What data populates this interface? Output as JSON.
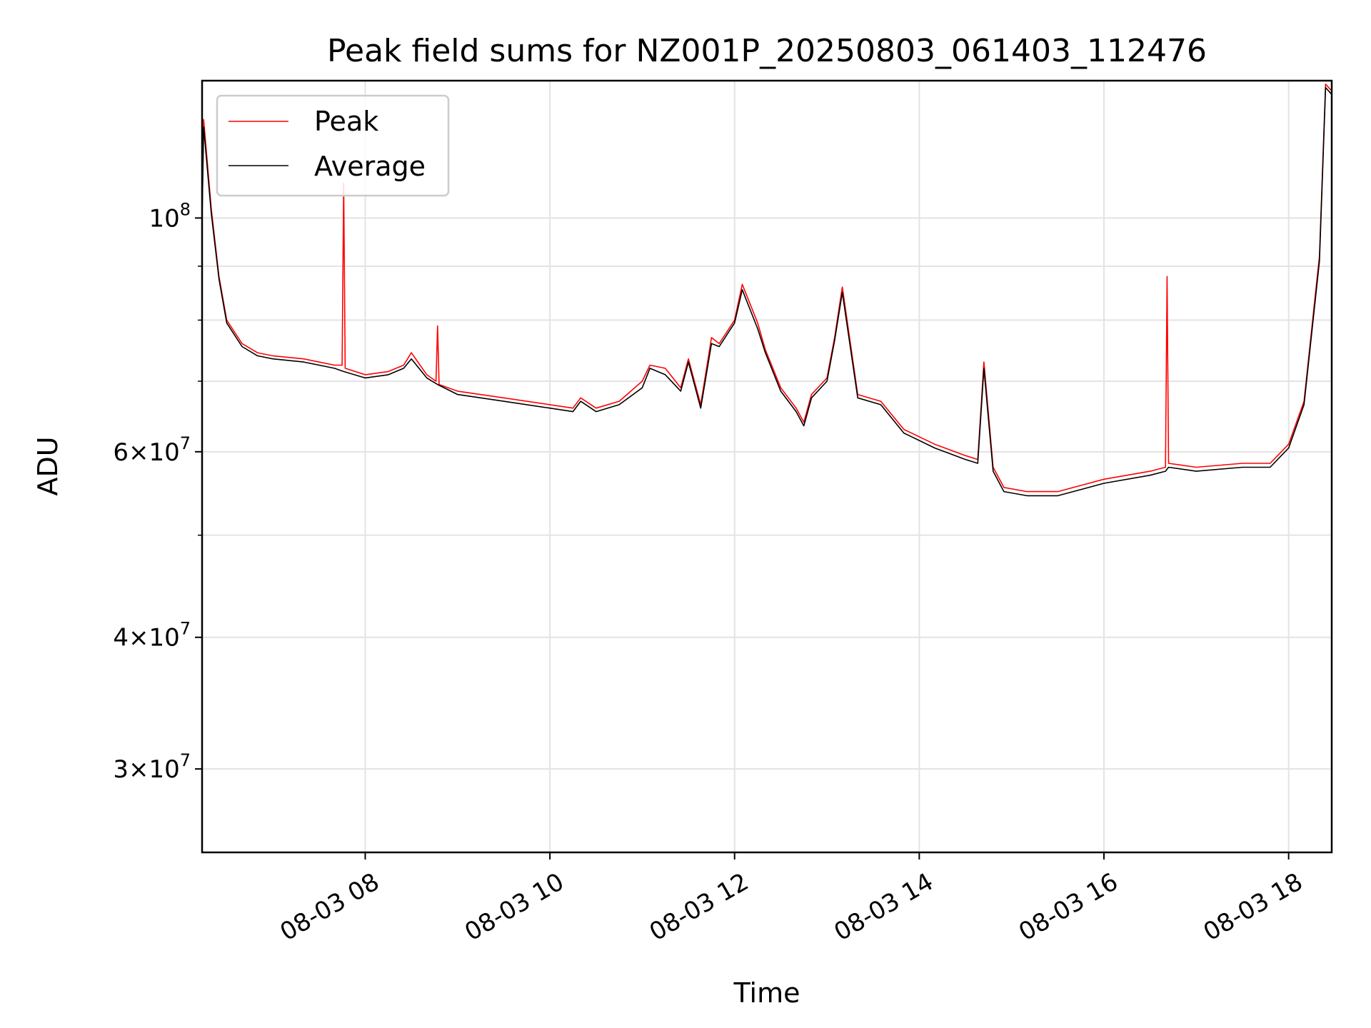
{
  "chart_data": {
    "type": "line",
    "title": "Peak field sums for NZ001P_20250803_061403_112476",
    "xlabel": "Time",
    "ylabel": "ADU",
    "y_scale": "log",
    "ylim": [
      25000000,
      135000000
    ],
    "xlim": [
      "2025-08-03 06:14",
      "2025-08-03 18:28"
    ],
    "grid": true,
    "legend_position": "upper-left",
    "x_ticks": [
      "08-03 08",
      "08-03 10",
      "08-03 12",
      "08-03 14",
      "08-03 16",
      "08-03 18"
    ],
    "x_tick_values": [
      "2025-08-03 08:00",
      "2025-08-03 10:00",
      "2025-08-03 12:00",
      "2025-08-03 14:00",
      "2025-08-03 16:00",
      "2025-08-03 18:00"
    ],
    "y_ticks": [
      {
        "value": 30000000,
        "base": "3",
        "exp": "7"
      },
      {
        "value": 40000000,
        "base": "4",
        "exp": "7"
      },
      {
        "value": 60000000,
        "base": "6",
        "exp": "7"
      },
      {
        "value": 100000000,
        "base": "",
        "exp": "8"
      }
    ],
    "series": [
      {
        "name": "Peak",
        "color": "#ff0000",
        "x": [
          "2025-08-03 06:14",
          "2025-08-03 06:15",
          "2025-08-03 06:20",
          "2025-08-03 06:25",
          "2025-08-03 06:30",
          "2025-08-03 06:40",
          "2025-08-03 06:50",
          "2025-08-03 07:00",
          "2025-08-03 07:20",
          "2025-08-03 07:40",
          "2025-08-03 07:45",
          "2025-08-03 07:46",
          "2025-08-03 07:47",
          "2025-08-03 08:00",
          "2025-08-03 08:15",
          "2025-08-03 08:25",
          "2025-08-03 08:30",
          "2025-08-03 08:40",
          "2025-08-03 08:46",
          "2025-08-03 08:47",
          "2025-08-03 08:48",
          "2025-08-03 09:00",
          "2025-08-03 09:30",
          "2025-08-03 10:00",
          "2025-08-03 10:15",
          "2025-08-03 10:20",
          "2025-08-03 10:30",
          "2025-08-03 10:45",
          "2025-08-03 11:00",
          "2025-08-03 11:05",
          "2025-08-03 11:15",
          "2025-08-03 11:25",
          "2025-08-03 11:30",
          "2025-08-03 11:38",
          "2025-08-03 11:45",
          "2025-08-03 11:50",
          "2025-08-03 12:00",
          "2025-08-03 12:05",
          "2025-08-03 12:15",
          "2025-08-03 12:20",
          "2025-08-03 12:30",
          "2025-08-03 12:40",
          "2025-08-03 12:45",
          "2025-08-03 12:50",
          "2025-08-03 13:00",
          "2025-08-03 13:05",
          "2025-08-03 13:10",
          "2025-08-03 13:20",
          "2025-08-03 13:35",
          "2025-08-03 13:50",
          "2025-08-03 14:10",
          "2025-08-03 14:30",
          "2025-08-03 14:38",
          "2025-08-03 14:42",
          "2025-08-03 14:48",
          "2025-08-03 14:55",
          "2025-08-03 15:10",
          "2025-08-03 15:30",
          "2025-08-03 16:00",
          "2025-08-03 16:30",
          "2025-08-03 16:40",
          "2025-08-03 16:41",
          "2025-08-03 16:42",
          "2025-08-03 17:00",
          "2025-08-03 17:30",
          "2025-08-03 17:48",
          "2025-08-03 18:00",
          "2025-08-03 18:10",
          "2025-08-03 18:20",
          "2025-08-03 18:24",
          "2025-08-03 18:28"
        ],
        "y": [
          100000000,
          124000000,
          102000000,
          88000000,
          80000000,
          76000000,
          74500000,
          74000000,
          73500000,
          72500000,
          72500000,
          108000000,
          72000000,
          71000000,
          71500000,
          72500000,
          74500000,
          71000000,
          70000000,
          79000000,
          69500000,
          68500000,
          67500000,
          66500000,
          66000000,
          67500000,
          66000000,
          67000000,
          70000000,
          72500000,
          72000000,
          69000000,
          73500000,
          66500000,
          77000000,
          76000000,
          80000000,
          86500000,
          79500000,
          75000000,
          69000000,
          66000000,
          64000000,
          68000000,
          70500000,
          77000000,
          86000000,
          68000000,
          67000000,
          63000000,
          61000000,
          59500000,
          59000000,
          73000000,
          58000000,
          55500000,
          55000000,
          55000000,
          56500000,
          57500000,
          58000000,
          88000000,
          58500000,
          58000000,
          58500000,
          58500000,
          61000000,
          67000000,
          92000000,
          134000000,
          132000000
        ]
      },
      {
        "name": "Average",
        "color": "#000000",
        "x": [
          "2025-08-03 06:14",
          "2025-08-03 06:15",
          "2025-08-03 06:20",
          "2025-08-03 06:25",
          "2025-08-03 06:30",
          "2025-08-03 06:40",
          "2025-08-03 06:50",
          "2025-08-03 07:00",
          "2025-08-03 07:20",
          "2025-08-03 07:40",
          "2025-08-03 07:46",
          "2025-08-03 08:00",
          "2025-08-03 08:15",
          "2025-08-03 08:25",
          "2025-08-03 08:30",
          "2025-08-03 08:40",
          "2025-08-03 08:47",
          "2025-08-03 09:00",
          "2025-08-03 09:30",
          "2025-08-03 10:00",
          "2025-08-03 10:15",
          "2025-08-03 10:20",
          "2025-08-03 10:30",
          "2025-08-03 10:45",
          "2025-08-03 11:00",
          "2025-08-03 11:05",
          "2025-08-03 11:15",
          "2025-08-03 11:25",
          "2025-08-03 11:30",
          "2025-08-03 11:38",
          "2025-08-03 11:45",
          "2025-08-03 11:50",
          "2025-08-03 12:00",
          "2025-08-03 12:05",
          "2025-08-03 12:15",
          "2025-08-03 12:20",
          "2025-08-03 12:30",
          "2025-08-03 12:40",
          "2025-08-03 12:45",
          "2025-08-03 12:50",
          "2025-08-03 13:00",
          "2025-08-03 13:05",
          "2025-08-03 13:10",
          "2025-08-03 13:20",
          "2025-08-03 13:35",
          "2025-08-03 13:50",
          "2025-08-03 14:10",
          "2025-08-03 14:30",
          "2025-08-03 14:38",
          "2025-08-03 14:42",
          "2025-08-03 14:48",
          "2025-08-03 14:55",
          "2025-08-03 15:10",
          "2025-08-03 15:30",
          "2025-08-03 16:00",
          "2025-08-03 16:30",
          "2025-08-03 16:40",
          "2025-08-03 16:42",
          "2025-08-03 17:00",
          "2025-08-03 17:30",
          "2025-08-03 17:48",
          "2025-08-03 18:00",
          "2025-08-03 18:10",
          "2025-08-03 18:20",
          "2025-08-03 18:24",
          "2025-08-03 18:28"
        ],
        "y": [
          100000000,
          122000000,
          101000000,
          87500000,
          79500000,
          75500000,
          74000000,
          73500000,
          73000000,
          72000000,
          71500000,
          70500000,
          71000000,
          72000000,
          73500000,
          70500000,
          69500000,
          68000000,
          67000000,
          66000000,
          65500000,
          67000000,
          65500000,
          66500000,
          69000000,
          72000000,
          71000000,
          68500000,
          73000000,
          66000000,
          76000000,
          75500000,
          79500000,
          85500000,
          78500000,
          74500000,
          68500000,
          65500000,
          63500000,
          67500000,
          70000000,
          76500000,
          85000000,
          67500000,
          66500000,
          62500000,
          60500000,
          59000000,
          58500000,
          72000000,
          57500000,
          55000000,
          54500000,
          54500000,
          56000000,
          57000000,
          57500000,
          58000000,
          57500000,
          58000000,
          58000000,
          60500000,
          66500000,
          91000000,
          133000000,
          131000000
        ]
      }
    ]
  }
}
